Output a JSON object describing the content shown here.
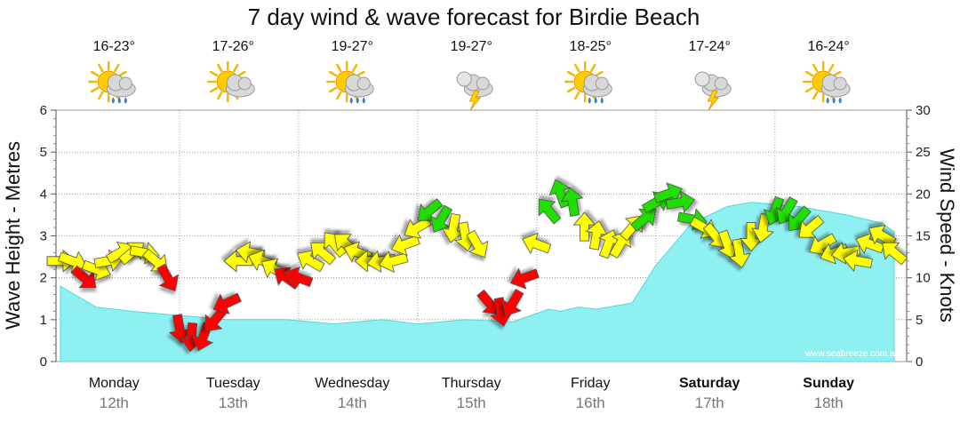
{
  "chart_data": {
    "type": "area",
    "title": "7 day wind & wave forecast for Birdie Beach",
    "ylabel_left": "Wave Height - Metres",
    "ylabel_right": "Wind Speed - Knots",
    "ylim_left": [
      0,
      6
    ],
    "ylim_right": [
      0,
      30
    ],
    "yticks_left": [
      "0",
      "1",
      "2",
      "3",
      "4",
      "5",
      "6"
    ],
    "yticks_right": [
      "0",
      "5",
      "10",
      "15",
      "20",
      "25",
      "30"
    ],
    "grid": true,
    "watermark": "www.seabreeze.com.au",
    "days": [
      {
        "name": "Monday",
        "date": "12th",
        "temp": "16-23°",
        "weather": "sun-cloud-rain-icon",
        "bold": false
      },
      {
        "name": "Tuesday",
        "date": "13th",
        "temp": "17-26°",
        "weather": "sun-cloud-icon",
        "bold": false
      },
      {
        "name": "Wednesday",
        "date": "14th",
        "temp": "19-27°",
        "weather": "sun-cloud-rain-icon",
        "bold": false
      },
      {
        "name": "Thursday",
        "date": "15th",
        "temp": "19-27°",
        "weather": "storm-icon",
        "bold": false
      },
      {
        "name": "Friday",
        "date": "16th",
        "temp": "18-25°",
        "weather": "sun-cloud-rain-icon",
        "bold": false
      },
      {
        "name": "Saturday",
        "date": "17th",
        "temp": "17-24°",
        "weather": "storm-icon",
        "bold": true
      },
      {
        "name": "Sunday",
        "date": "18th",
        "temp": "16-24°",
        "weather": "sun-cloud-rain-icon",
        "bold": true
      }
    ],
    "wave_height": {
      "x_days": [
        0,
        0.3,
        0.6,
        1.0,
        1.4,
        1.9,
        2.3,
        2.7,
        3.0,
        3.4,
        3.8,
        4.1,
        4.2,
        4.35,
        4.5,
        4.8,
        5.0,
        5.3,
        5.6,
        5.8,
        6.2,
        6.6,
        6.9,
        7.0
      ],
      "values": [
        1.8,
        1.3,
        1.2,
        1.1,
        1.0,
        1.0,
        0.9,
        1.0,
        0.9,
        1.0,
        0.95,
        1.25,
        1.2,
        1.3,
        1.25,
        1.4,
        2.3,
        3.3,
        3.7,
        3.8,
        3.7,
        3.5,
        3.3,
        3.1
      ]
    },
    "wind_speed_knots": {
      "x_days": [
        0.0,
        0.1,
        0.2,
        0.3,
        0.4,
        0.5,
        0.6,
        0.7,
        0.8,
        0.9,
        1.0,
        1.1,
        1.2,
        1.3,
        1.4,
        1.5,
        1.6,
        1.7,
        1.8,
        1.9,
        2.0,
        2.1,
        2.2,
        2.3,
        2.4,
        2.5,
        2.6,
        2.7,
        2.8,
        2.9,
        3.0,
        3.1,
        3.2,
        3.3,
        3.4,
        3.5,
        3.6,
        3.7,
        3.8,
        3.9,
        4.0,
        4.1,
        4.2,
        4.3,
        4.4,
        4.5,
        4.6,
        4.7,
        4.8,
        4.9,
        5.0,
        5.1,
        5.2,
        5.3,
        5.4,
        5.5,
        5.6,
        5.7,
        5.8,
        5.9,
        6.0,
        6.1,
        6.2,
        6.3,
        6.4,
        6.5,
        6.6,
        6.7,
        6.8,
        6.9,
        7.0
      ],
      "values": [
        12,
        12,
        10,
        11,
        12,
        13,
        13,
        13,
        12,
        10,
        4,
        3,
        3,
        5,
        7,
        12,
        13,
        12,
        11,
        10,
        10,
        12,
        13,
        14,
        14,
        13,
        12,
        12,
        12,
        14,
        16,
        18,
        17,
        16,
        15,
        14,
        7,
        6,
        7,
        10,
        14,
        18,
        20,
        19,
        16,
        15,
        14,
        14,
        16,
        17,
        19,
        20,
        19,
        17,
        16,
        15,
        14,
        13,
        15,
        16,
        18,
        18,
        17,
        16,
        14,
        13,
        13,
        12,
        14,
        15,
        13
      ],
      "color_legend": {
        "red": "#ff0000",
        "yellow": "#ffff00",
        "green": "#22dd00"
      }
    }
  }
}
